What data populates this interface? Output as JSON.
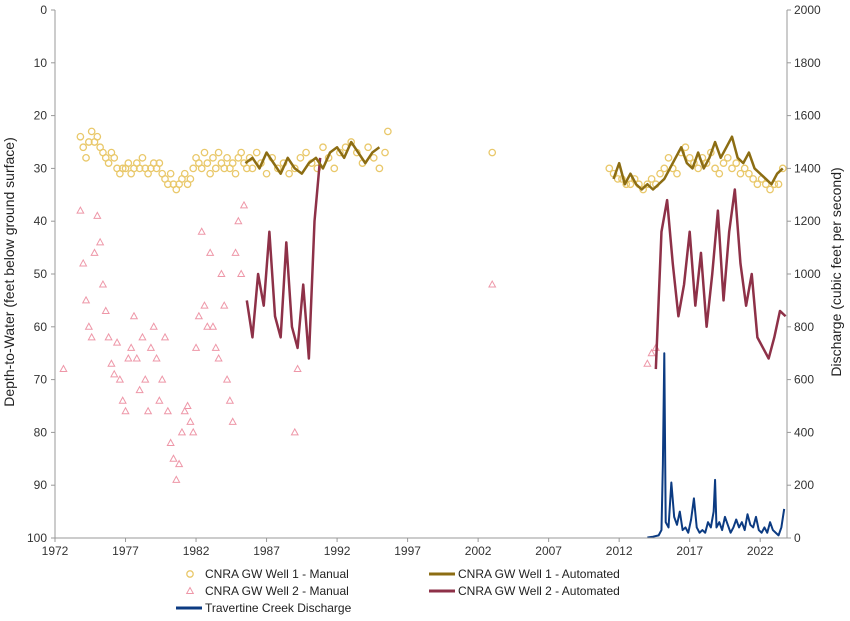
{
  "chart_data": {
    "type": "scatter",
    "x_ticks": [
      "1972",
      "1977",
      "1982",
      "1987",
      "1992",
      "1997",
      "2002",
      "2007",
      "2012",
      "2017",
      "2022"
    ],
    "x_range": [
      1972,
      2023.9
    ],
    "y_left": {
      "label": "Depth-to-Water (feet below ground surface)",
      "range": [
        0,
        100
      ],
      "reversed": true,
      "ticks": [
        "0",
        "10",
        "20",
        "30",
        "40",
        "50",
        "60",
        "70",
        "80",
        "90",
        "100"
      ]
    },
    "y_right": {
      "label": "Discharge (cubic feet per second)",
      "range": [
        0,
        2000
      ],
      "ticks": [
        "0",
        "200",
        "400",
        "600",
        "800",
        "1000",
        "1200",
        "1400",
        "1600",
        "1800",
        "2000"
      ]
    },
    "grid": false,
    "colors": {
      "well1_manual": "#E9C86A",
      "well2_manual": "#EE97A8",
      "well1_auto": "#8C6D13",
      "well2_auto": "#8E3148",
      "discharge": "#0C3B82",
      "axis": "#999999"
    },
    "series": [
      {
        "name": "CNRA GW Well 1 - Manual",
        "axis": "left",
        "marker": "circle",
        "x": [
          1973.8,
          1974.0,
          1974.2,
          1974.4,
          1974.6,
          1974.8,
          1975.0,
          1975.2,
          1975.4,
          1975.6,
          1975.8,
          1976.0,
          1976.2,
          1976.4,
          1976.6,
          1976.8,
          1977.0,
          1977.2,
          1977.4,
          1977.6,
          1977.8,
          1978.0,
          1978.2,
          1978.4,
          1978.6,
          1978.8,
          1979.0,
          1979.2,
          1979.4,
          1979.6,
          1979.8,
          1980.0,
          1980.2,
          1980.4,
          1980.6,
          1980.8,
          1981.0,
          1981.2,
          1981.4,
          1981.6,
          1981.8,
          1982.0,
          1982.2,
          1982.4,
          1982.6,
          1982.8,
          1983.0,
          1983.2,
          1983.4,
          1983.6,
          1983.8,
          1984.0,
          1984.2,
          1984.4,
          1984.6,
          1984.8,
          1985.0,
          1985.2,
          1985.4,
          1985.6,
          1985.8,
          1986.0,
          1986.3,
          1986.6,
          1987.0,
          1987.4,
          1987.8,
          1988.2,
          1988.6,
          1989.0,
          1989.4,
          1989.8,
          1990.2,
          1990.6,
          1991.0,
          1991.4,
          1991.8,
          1992.2,
          1992.6,
          1993.0,
          1993.4,
          1993.8,
          1994.2,
          1994.6,
          1995.0,
          1995.4,
          1995.6,
          2003.0,
          2011.3,
          2011.6,
          2011.9,
          2012.2,
          2012.5,
          2012.8,
          2013.1,
          2013.4,
          2013.7,
          2014.0,
          2014.3,
          2014.6,
          2014.9,
          2015.2,
          2015.5,
          2015.8,
          2016.1,
          2016.4,
          2016.7,
          2017.0,
          2017.3,
          2017.6,
          2017.9,
          2018.2,
          2018.5,
          2018.8,
          2019.1,
          2019.4,
          2019.7,
          2020.0,
          2020.3,
          2020.6,
          2020.9,
          2021.2,
          2021.5,
          2021.8,
          2022.1,
          2022.4,
          2022.7,
          2023.0,
          2023.3,
          2023.6
        ],
        "y": [
          24,
          26,
          28,
          25,
          23,
          25,
          24,
          26,
          27,
          28,
          29,
          27,
          28,
          30,
          31,
          30,
          30,
          29,
          31,
          30,
          29,
          30,
          28,
          30,
          31,
          30,
          29,
          30,
          29,
          31,
          32,
          33,
          31,
          33,
          34,
          33,
          32,
          31,
          33,
          32,
          30,
          28,
          29,
          30,
          27,
          29,
          31,
          28,
          30,
          27,
          29,
          30,
          28,
          30,
          29,
          31,
          28,
          27,
          29,
          30,
          28,
          30,
          27,
          29,
          31,
          28,
          30,
          29,
          31,
          30,
          28,
          27,
          29,
          30,
          26,
          28,
          30,
          27,
          26,
          25,
          27,
          29,
          26,
          28,
          30,
          27,
          23,
          27,
          30,
          31,
          32,
          32,
          33,
          33,
          32,
          33,
          34,
          33,
          32,
          33,
          31,
          30,
          28,
          30,
          31,
          27,
          26,
          28,
          29,
          30,
          28,
          29,
          27,
          30,
          31,
          29,
          28,
          30,
          29,
          31,
          30,
          31,
          32,
          33,
          32,
          33,
          34,
          33,
          33,
          30
        ],
        "values_note": ""
      },
      {
        "name": "CNRA GW Well 2 - Manual",
        "axis": "left",
        "marker": "triangle",
        "x": [
          1972.6,
          1973.8,
          1974.0,
          1974.2,
          1974.4,
          1974.6,
          1974.8,
          1975.0,
          1975.2,
          1975.4,
          1975.6,
          1975.8,
          1976.0,
          1976.2,
          1976.4,
          1976.6,
          1976.8,
          1977.0,
          1977.2,
          1977.4,
          1977.6,
          1977.8,
          1978.0,
          1978.2,
          1978.4,
          1978.6,
          1978.8,
          1979.0,
          1979.2,
          1979.4,
          1979.6,
          1979.8,
          1980.0,
          1980.2,
          1980.4,
          1980.6,
          1980.8,
          1981.0,
          1981.2,
          1981.4,
          1981.6,
          1981.8,
          1982.0,
          1982.2,
          1982.4,
          1982.6,
          1982.8,
          1983.0,
          1983.2,
          1983.4,
          1983.6,
          1983.8,
          1984.0,
          1984.2,
          1984.4,
          1984.6,
          1984.8,
          1985.0,
          1985.2,
          1985.4,
          1989.0,
          1989.2,
          2003.0,
          2014.0,
          2014.3,
          2014.6
        ],
        "y": [
          68,
          38,
          48,
          55,
          60,
          62,
          46,
          39,
          44,
          52,
          57,
          62,
          67,
          69,
          63,
          70,
          74,
          76,
          66,
          64,
          58,
          66,
          72,
          62,
          70,
          76,
          64,
          60,
          66,
          74,
          70,
          62,
          76,
          82,
          85,
          89,
          86,
          80,
          76,
          75,
          78,
          80,
          64,
          58,
          42,
          56,
          60,
          46,
          60,
          64,
          66,
          50,
          56,
          70,
          74,
          78,
          46,
          40,
          50,
          37,
          80,
          68,
          52,
          67,
          65,
          64
        ]
      },
      {
        "name": "CNRA GW Well 1 - Automated",
        "axis": "left",
        "marker": "line",
        "x": [
          1985.5,
          1986.0,
          1986.5,
          1987.0,
          1987.5,
          1988.0,
          1988.5,
          1989.0,
          1989.5,
          1990.0,
          1990.5,
          1991.0,
          1991.5,
          1992.0,
          1992.5,
          1993.0,
          1993.5,
          1994.0,
          1994.5,
          1995.0,
          2011.6,
          2012.0,
          2012.4,
          2012.8,
          2013.2,
          2013.6,
          2014.0,
          2014.4,
          2014.8,
          2015.2,
          2015.6,
          2016.0,
          2016.4,
          2016.8,
          2017.2,
          2017.6,
          2018.0,
          2018.4,
          2018.8,
          2019.2,
          2019.6,
          2020.0,
          2020.4,
          2020.8,
          2021.2,
          2021.6,
          2022.0,
          2022.4,
          2022.8,
          2023.2,
          2023.6
        ],
        "y": [
          29,
          28,
          30,
          27,
          29,
          31,
          28,
          30,
          31,
          29,
          28,
          30,
          27,
          26,
          28,
          25,
          27,
          29,
          27,
          26,
          32,
          29,
          33,
          31,
          33,
          34,
          33,
          34,
          33,
          32,
          30,
          28,
          26,
          29,
          30,
          27,
          30,
          28,
          25,
          28,
          26,
          24,
          28,
          29,
          27,
          30,
          31,
          32,
          33,
          31,
          30
        ]
      },
      {
        "name": "CNRA GW Well 2 - Automated",
        "axis": "left",
        "marker": "line",
        "x": [
          1985.6,
          1986.0,
          1986.4,
          1986.8,
          1987.2,
          1987.6,
          1988.0,
          1988.4,
          1988.8,
          1989.2,
          1989.6,
          1990.0,
          1990.4,
          1990.8,
          2014.6,
          2015.0,
          2015.4,
          2015.8,
          2016.2,
          2016.6,
          2017.0,
          2017.4,
          2017.8,
          2018.2,
          2018.6,
          2019.0,
          2019.4,
          2019.8,
          2020.2,
          2020.6,
          2021.0,
          2021.4,
          2021.8,
          2022.2,
          2022.6,
          2023.0,
          2023.4,
          2023.8
        ],
        "y": [
          55,
          62,
          50,
          56,
          42,
          58,
          62,
          44,
          60,
          64,
          52,
          66,
          40,
          28,
          68,
          42,
          36,
          48,
          58,
          52,
          42,
          56,
          46,
          60,
          50,
          38,
          55,
          42,
          34,
          48,
          56,
          50,
          62,
          64,
          66,
          62,
          57,
          58
        ]
      },
      {
        "name": "Travertine Creek Discharge",
        "axis": "right",
        "marker": "line",
        "x": [
          2014.0,
          2014.4,
          2014.8,
          2015.0,
          2015.1,
          2015.2,
          2015.3,
          2015.5,
          2015.7,
          2015.9,
          2016.1,
          2016.3,
          2016.5,
          2016.7,
          2016.9,
          2017.1,
          2017.3,
          2017.5,
          2017.7,
          2017.9,
          2018.1,
          2018.3,
          2018.5,
          2018.7,
          2018.8,
          2018.9,
          2019.1,
          2019.3,
          2019.5,
          2019.7,
          2019.9,
          2020.1,
          2020.3,
          2020.5,
          2020.7,
          2020.9,
          2021.1,
          2021.3,
          2021.5,
          2021.7,
          2021.9,
          2022.1,
          2022.3,
          2022.5,
          2022.7,
          2022.9,
          2023.1,
          2023.3,
          2023.5,
          2023.7
        ],
        "y": [
          2,
          5,
          10,
          30,
          280,
          700,
          60,
          40,
          210,
          80,
          50,
          100,
          30,
          40,
          20,
          70,
          150,
          40,
          20,
          30,
          20,
          60,
          40,
          100,
          220,
          40,
          60,
          30,
          80,
          50,
          20,
          40,
          70,
          40,
          60,
          30,
          90,
          50,
          40,
          80,
          30,
          20,
          40,
          20,
          60,
          30,
          20,
          10,
          40,
          110
        ]
      }
    ],
    "legend": {
      "position": "bottom",
      "items": [
        "CNRA GW Well 1 - Manual",
        "CNRA GW Well 1 - Automated",
        "CNRA GW Well 2 - Manual",
        "CNRA GW Well 2 - Automated",
        "Travertine Creek Discharge"
      ]
    }
  }
}
